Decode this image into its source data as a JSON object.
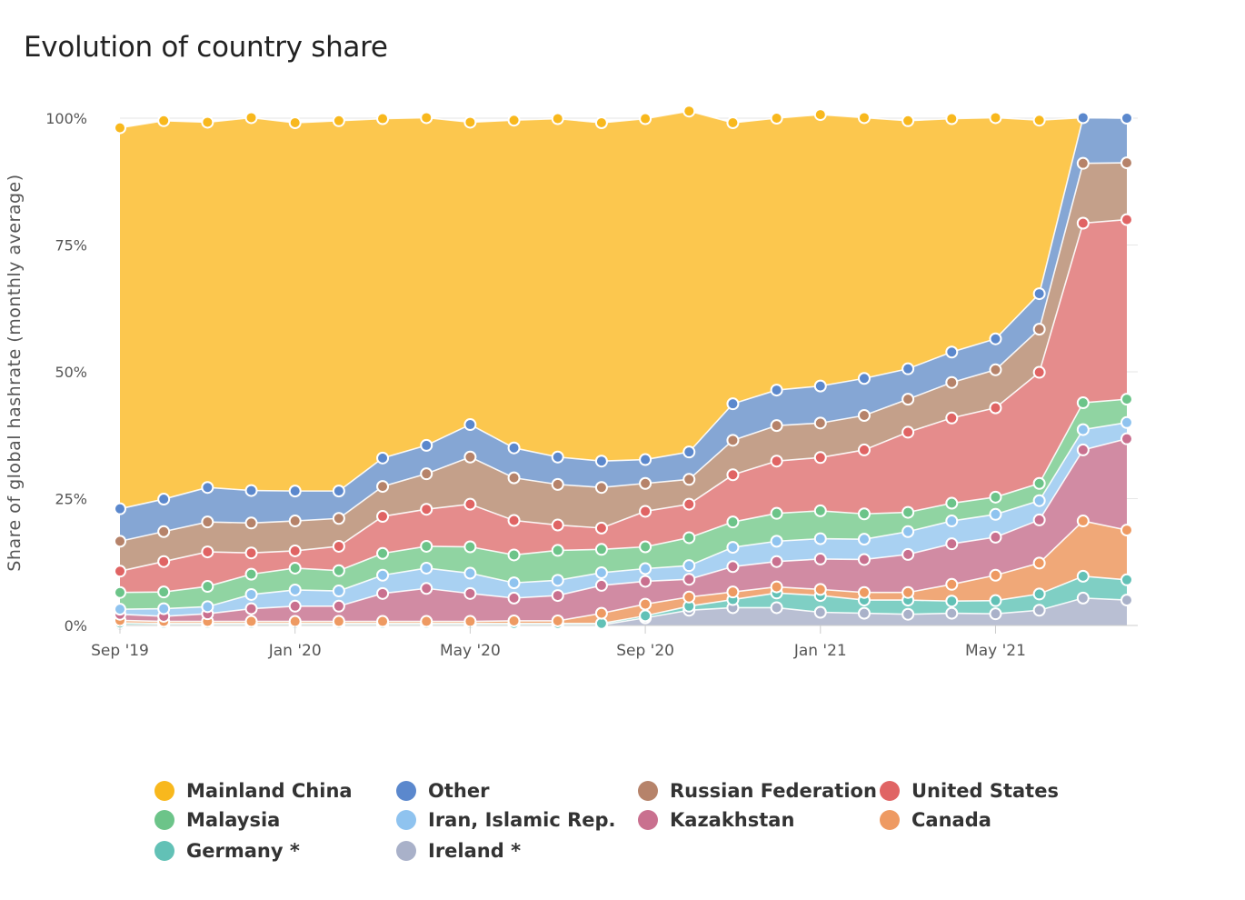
{
  "chart_data": {
    "type": "area",
    "stacked": true,
    "title": "Evolution of country share",
    "ylabel": "Share of global hashrate (monthly average)",
    "xlabel": "",
    "ylim": [
      0,
      100
    ],
    "yticks": [
      0,
      25,
      50,
      75,
      100
    ],
    "ytick_labels": [
      "0%",
      "25%",
      "50%",
      "75%",
      "100%"
    ],
    "x": [
      "2019-09",
      "2019-10",
      "2019-11",
      "2019-12",
      "2020-01",
      "2020-02",
      "2020-03",
      "2020-04",
      "2020-05",
      "2020-06",
      "2020-07",
      "2020-08",
      "2020-09",
      "2020-10",
      "2020-11",
      "2020-12",
      "2021-01",
      "2021-02",
      "2021-03",
      "2021-04",
      "2021-05",
      "2021-06",
      "2021-07",
      "2021-08"
    ],
    "xticks": [
      {
        "x": "2019-09",
        "label": "Sep '19"
      },
      {
        "x": "2020-01",
        "label": "Jan '20"
      },
      {
        "x": "2020-05",
        "label": "May '20"
      },
      {
        "x": "2020-09",
        "label": "Sep '20"
      },
      {
        "x": "2021-01",
        "label": "Jan '21"
      },
      {
        "x": "2021-05",
        "label": "May '21"
      }
    ],
    "grid": true,
    "legend_position": "bottom",
    "series": [
      {
        "name": "Ireland",
        "note": "*",
        "color": "#b9bfd3",
        "values": [
          0.1,
          0.1,
          0.1,
          0.1,
          0.1,
          0.1,
          0.1,
          0.1,
          0.1,
          0.1,
          0.1,
          0.1,
          1.5,
          3.0,
          3.5,
          3.5,
          2.6,
          2.4,
          2.2,
          2.4,
          2.3,
          3.0,
          5.4,
          5.0
        ]
      },
      {
        "name": "Germany",
        "note": "*",
        "color": "#7fcfc4",
        "values": [
          0.4,
          0.3,
          0.3,
          0.3,
          0.3,
          0.3,
          0.3,
          0.3,
          0.3,
          0.3,
          0.3,
          0.3,
          0.4,
          0.8,
          1.6,
          2.9,
          3.3,
          2.6,
          2.8,
          2.4,
          2.6,
          3.2,
          4.3,
          4.0
        ]
      },
      {
        "name": "Canada",
        "note": "",
        "color": "#f0a878",
        "values": [
          0.5,
          0.4,
          0.4,
          0.4,
          0.4,
          0.4,
          0.4,
          0.4,
          0.4,
          0.5,
          0.5,
          2.0,
          2.3,
          1.8,
          1.5,
          1.2,
          1.2,
          1.5,
          1.5,
          3.3,
          5.0,
          6.1,
          10.9,
          9.8
        ]
      },
      {
        "name": "Kazakhstan",
        "note": "",
        "color": "#d18ba3",
        "values": [
          1.2,
          1.0,
          1.5,
          2.5,
          3.0,
          3.0,
          5.5,
          6.5,
          5.5,
          4.5,
          5.0,
          5.5,
          4.5,
          3.5,
          5.0,
          5.0,
          6.0,
          6.5,
          7.5,
          8.0,
          7.5,
          8.5,
          14.0,
          18.0
        ]
      },
      {
        "name": "Iran, Islamic Rep.",
        "note": "",
        "color": "#a9d1f2",
        "values": [
          1.0,
          1.5,
          1.4,
          2.8,
          3.2,
          3.0,
          3.6,
          4.0,
          4.0,
          3.0,
          3.0,
          2.5,
          2.5,
          2.7,
          3.8,
          4.0,
          4.0,
          4.0,
          4.5,
          4.5,
          4.5,
          3.8,
          4.0,
          3.2
        ]
      },
      {
        "name": "Malaysia",
        "note": "",
        "color": "#90d4a2",
        "values": [
          3.3,
          3.3,
          4.0,
          4.0,
          4.3,
          4.0,
          4.3,
          4.3,
          5.2,
          5.5,
          5.9,
          4.6,
          4.3,
          5.5,
          5.0,
          5.5,
          5.5,
          5.0,
          3.8,
          3.5,
          3.4,
          3.4,
          5.3,
          4.6
        ]
      },
      {
        "name": "United States",
        "note": "",
        "color": "#e58c8c",
        "values": [
          4.2,
          6.0,
          6.8,
          4.2,
          3.4,
          4.8,
          7.3,
          7.3,
          8.4,
          6.8,
          5.0,
          4.2,
          7.0,
          6.6,
          9.3,
          10.3,
          10.5,
          12.6,
          15.8,
          16.8,
          17.6,
          21.9,
          35.4,
          35.4
        ]
      },
      {
        "name": "Russian Federation",
        "note": "",
        "color": "#c4a08a",
        "values": [
          5.9,
          5.9,
          5.9,
          5.9,
          5.9,
          5.5,
          5.9,
          7.0,
          9.3,
          8.4,
          8.0,
          8.0,
          5.5,
          4.9,
          6.8,
          7.0,
          6.8,
          6.8,
          6.5,
          7.0,
          7.5,
          8.5,
          11.8,
          11.2
        ]
      },
      {
        "name": "Other",
        "note": "",
        "color": "#85a6d4",
        "values": [
          6.4,
          6.4,
          6.8,
          6.4,
          5.9,
          5.4,
          5.6,
          5.6,
          6.4,
          5.9,
          5.4,
          5.2,
          4.7,
          5.4,
          7.2,
          7.0,
          7.3,
          7.3,
          6.0,
          6.0,
          6.1,
          7.0,
          9.0,
          8.8
        ]
      },
      {
        "name": "Mainland China",
        "note": "",
        "color": "#fcc74e",
        "values": [
          75.1,
          74.6,
          72.0,
          73.5,
          72.6,
          73.0,
          66.9,
          64.6,
          59.6,
          64.6,
          66.7,
          66.7,
          67.2,
          67.2,
          55.4,
          53.6,
          53.5,
          51.4,
          48.9,
          46.0,
          43.6,
          34.2,
          0,
          0
        ]
      }
    ],
    "marker_colors": {
      "Ireland": "#a9b1c9",
      "Germany": "#62c1b6",
      "Canada": "#ee9a62",
      "Kazakhstan": "#c9708f",
      "Iran, Islamic Rep.": "#8fc3ef",
      "Malaysia": "#6cc489",
      "United States": "#e06464",
      "Russian Federation": "#b6836a",
      "Other": "#5b88cd",
      "Mainland China": "#f8b81d"
    },
    "legend_order": [
      "Mainland China",
      "Other",
      "Russian Federation",
      "United States",
      "Malaysia",
      "Iran, Islamic Rep.",
      "Kazakhstan",
      "Canada",
      "Germany",
      "Ireland"
    ]
  }
}
